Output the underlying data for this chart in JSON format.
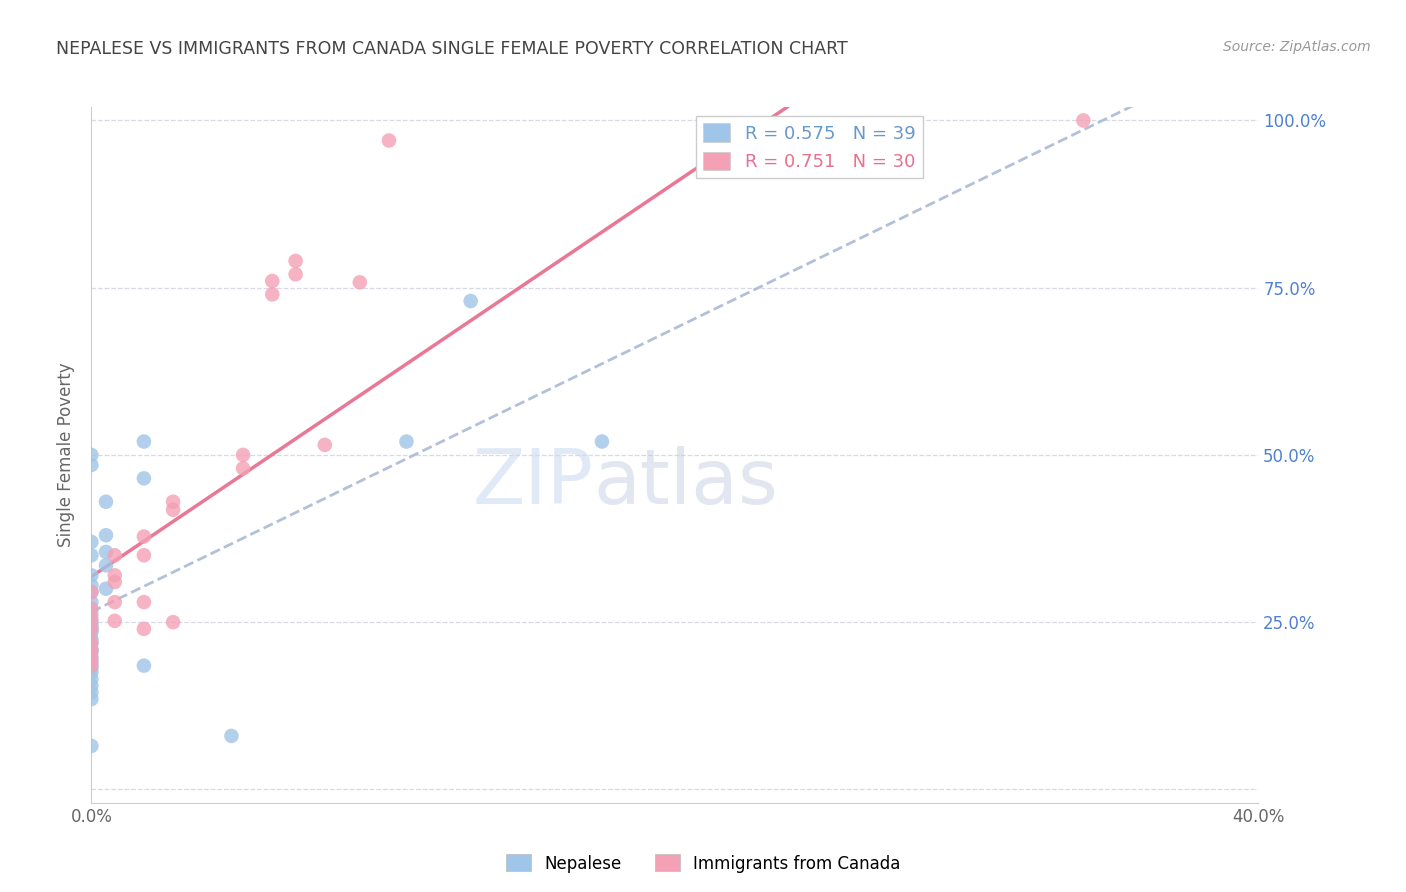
{
  "title": "NEPALESE VS IMMIGRANTS FROM CANADA SINGLE FEMALE POVERTY CORRELATION CHART",
  "source": "Source: ZipAtlas.com",
  "ylabel": "Single Female Poverty",
  "x_min": 0.0,
  "x_max": 0.4,
  "y_min": 0.0,
  "y_max": 1.0,
  "x_ticks": [
    0.0,
    0.05,
    0.1,
    0.15,
    0.2,
    0.25,
    0.3,
    0.35,
    0.4
  ],
  "y_ticks": [
    0.0,
    0.25,
    0.5,
    0.75,
    1.0
  ],
  "y_tick_labels_right": [
    "",
    "25.0%",
    "50.0%",
    "75.0%",
    "100.0%"
  ],
  "R_nepalese": 0.575,
  "N_nepalese": 39,
  "R_canada": 0.751,
  "N_canada": 30,
  "nepalese_color": "#9fc5e8",
  "canada_color": "#f4a0b5",
  "nepalese_line_color": "#6699cc",
  "canada_line_color": "#e87090",
  "nep_dash_color": "#aabbd4",
  "grid_color": "#d8d8e8",
  "background_color": "#ffffff",
  "title_color": "#444444",
  "right_axis_color": "#5080d0",
  "watermark_zip_color": "#c8d8f0",
  "watermark_atlas_color": "#c0c8e0",
  "nepalese_scatter": [
    [
      0.0,
      0.485
    ],
    [
      0.0,
      0.5
    ],
    [
      0.0,
      0.37
    ],
    [
      0.0,
      0.35
    ],
    [
      0.0,
      0.32
    ],
    [
      0.0,
      0.305
    ],
    [
      0.0,
      0.295
    ],
    [
      0.0,
      0.28
    ],
    [
      0.0,
      0.27
    ],
    [
      0.0,
      0.262
    ],
    [
      0.0,
      0.25
    ],
    [
      0.0,
      0.245
    ],
    [
      0.0,
      0.24
    ],
    [
      0.0,
      0.235
    ],
    [
      0.0,
      0.225
    ],
    [
      0.0,
      0.218
    ],
    [
      0.0,
      0.21
    ],
    [
      0.0,
      0.205
    ],
    [
      0.0,
      0.198
    ],
    [
      0.0,
      0.19
    ],
    [
      0.0,
      0.182
    ],
    [
      0.0,
      0.175
    ],
    [
      0.0,
      0.165
    ],
    [
      0.0,
      0.155
    ],
    [
      0.0,
      0.145
    ],
    [
      0.0,
      0.135
    ],
    [
      0.005,
      0.43
    ],
    [
      0.005,
      0.38
    ],
    [
      0.005,
      0.355
    ],
    [
      0.005,
      0.335
    ],
    [
      0.005,
      0.3
    ],
    [
      0.018,
      0.52
    ],
    [
      0.018,
      0.465
    ],
    [
      0.018,
      0.185
    ],
    [
      0.048,
      0.08
    ],
    [
      0.108,
      0.52
    ],
    [
      0.13,
      0.73
    ],
    [
      0.175,
      0.52
    ],
    [
      0.0,
      0.065
    ]
  ],
  "canada_scatter": [
    [
      0.0,
      0.295
    ],
    [
      0.0,
      0.27
    ],
    [
      0.0,
      0.255
    ],
    [
      0.0,
      0.24
    ],
    [
      0.0,
      0.22
    ],
    [
      0.0,
      0.208
    ],
    [
      0.0,
      0.195
    ],
    [
      0.0,
      0.185
    ],
    [
      0.008,
      0.35
    ],
    [
      0.008,
      0.32
    ],
    [
      0.008,
      0.31
    ],
    [
      0.008,
      0.28
    ],
    [
      0.008,
      0.252
    ],
    [
      0.018,
      0.378
    ],
    [
      0.018,
      0.35
    ],
    [
      0.018,
      0.28
    ],
    [
      0.018,
      0.24
    ],
    [
      0.028,
      0.43
    ],
    [
      0.028,
      0.418
    ],
    [
      0.028,
      0.25
    ],
    [
      0.052,
      0.5
    ],
    [
      0.052,
      0.48
    ],
    [
      0.062,
      0.76
    ],
    [
      0.062,
      0.74
    ],
    [
      0.07,
      0.79
    ],
    [
      0.07,
      0.77
    ],
    [
      0.08,
      0.515
    ],
    [
      0.092,
      0.758
    ],
    [
      0.102,
      0.97
    ],
    [
      0.34,
      1.0
    ]
  ]
}
